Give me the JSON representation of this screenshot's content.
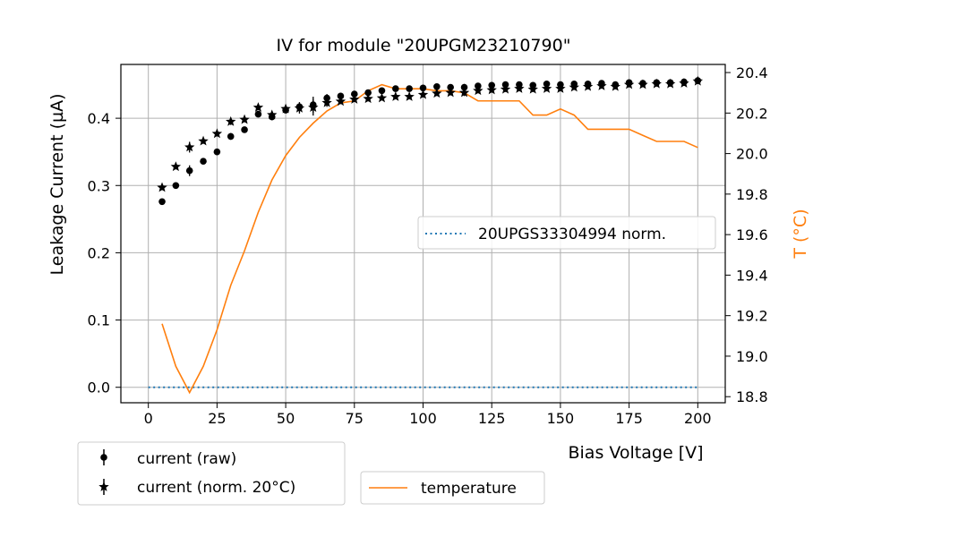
{
  "chart_data": {
    "type": "scatter",
    "title": "IV for module \"20UPGM23210790\"",
    "xlabel": "Bias Voltage [V]",
    "ylabel": "Leakage Current (µA)",
    "y2label": "T (°C)",
    "xlim": [
      -10,
      210
    ],
    "ylim": [
      -0.023,
      0.48
    ],
    "y2lim": [
      18.77,
      20.44
    ],
    "xticks": [
      0,
      25,
      50,
      75,
      100,
      125,
      150,
      175,
      200
    ],
    "yticks": [
      0.0,
      0.1,
      0.2,
      0.3,
      0.4
    ],
    "ytick_labels": [
      "0.0",
      "0.1",
      "0.2",
      "0.3",
      "0.4"
    ],
    "y2ticks": [
      18.8,
      19.0,
      19.2,
      19.4,
      19.6,
      19.8,
      20.0,
      20.2,
      20.4
    ],
    "y2tick_labels": [
      "18.8",
      "19.0",
      "19.2",
      "19.4",
      "19.6",
      "19.8",
      "20.0",
      "20.2",
      "20.4"
    ],
    "grid": true,
    "colors": {
      "current": "#000000",
      "reference": "#1f77b4",
      "temperature": "#ff7f0e",
      "grid": "#b0b0b0"
    },
    "legends": {
      "current_raw": "current (raw)",
      "current_norm": "current (norm. 20°C)",
      "temperature": "temperature",
      "reference": "20UPGS33304994 norm."
    },
    "legend_placement": {
      "current": "below-left",
      "temperature": "below-center",
      "reference": "center-right"
    },
    "series": [
      {
        "name": "current (raw)",
        "marker": "circle",
        "axis": "left",
        "x": [
          5,
          10,
          15,
          20,
          25,
          30,
          35,
          40,
          45,
          50,
          55,
          60,
          65,
          70,
          75,
          80,
          85,
          90,
          95,
          100,
          105,
          110,
          115,
          120,
          125,
          130,
          135,
          140,
          145,
          150,
          155,
          160,
          165,
          170,
          175,
          180,
          185,
          190,
          195,
          200
        ],
        "values": [
          0.276,
          0.3,
          0.322,
          0.336,
          0.35,
          0.373,
          0.383,
          0.406,
          0.402,
          0.412,
          0.417,
          0.42,
          0.43,
          0.433,
          0.436,
          0.438,
          0.441,
          0.444,
          0.444,
          0.445,
          0.447,
          0.446,
          0.446,
          0.448,
          0.449,
          0.45,
          0.45,
          0.449,
          0.451,
          0.45,
          0.451,
          0.451,
          0.452,
          0.45,
          0.453,
          0.452,
          0.453,
          0.453,
          0.454,
          0.456
        ],
        "errors": [
          0.004,
          0.004,
          0.008,
          0.004,
          0.004,
          0.005,
          0.004,
          0.004,
          0.005,
          0.004,
          0.007,
          0.012,
          0.006,
          0.004,
          0.004,
          0.004,
          0.003,
          0.004,
          0.004,
          0.004,
          0.004,
          0.004,
          0.005,
          0.004,
          0.004,
          0.004,
          0.004,
          0.004,
          0.004,
          0.004,
          0.004,
          0.004,
          0.004,
          0.004,
          0.004,
          0.004,
          0.004,
          0.004,
          0.004,
          0.004
        ]
      },
      {
        "name": "current (norm. 20°C)",
        "marker": "star",
        "axis": "left",
        "x": [
          5,
          10,
          15,
          20,
          25,
          30,
          35,
          40,
          45,
          50,
          55,
          60,
          65,
          70,
          75,
          80,
          85,
          90,
          95,
          100,
          105,
          110,
          115,
          120,
          125,
          130,
          135,
          140,
          145,
          150,
          155,
          160,
          165,
          170,
          175,
          180,
          185,
          190,
          195,
          200
        ],
        "values": [
          0.297,
          0.328,
          0.357,
          0.366,
          0.377,
          0.395,
          0.398,
          0.416,
          0.405,
          0.414,
          0.415,
          0.416,
          0.423,
          0.425,
          0.428,
          0.429,
          0.43,
          0.432,
          0.432,
          0.435,
          0.437,
          0.438,
          0.438,
          0.441,
          0.442,
          0.443,
          0.444,
          0.443,
          0.444,
          0.444,
          0.446,
          0.447,
          0.448,
          0.447,
          0.45,
          0.45,
          0.451,
          0.451,
          0.452,
          0.455
        ],
        "errors": [
          0.004,
          0.004,
          0.008,
          0.004,
          0.004,
          0.005,
          0.004,
          0.004,
          0.005,
          0.004,
          0.008,
          0.012,
          0.006,
          0.004,
          0.004,
          0.004,
          0.003,
          0.004,
          0.004,
          0.004,
          0.004,
          0.004,
          0.005,
          0.004,
          0.004,
          0.004,
          0.004,
          0.004,
          0.004,
          0.004,
          0.004,
          0.004,
          0.004,
          0.004,
          0.004,
          0.004,
          0.004,
          0.004,
          0.004,
          0.004
        ]
      },
      {
        "name": "temperature",
        "type": "line",
        "axis": "right",
        "x": [
          5,
          10,
          15,
          20,
          25,
          30,
          35,
          40,
          45,
          50,
          55,
          60,
          65,
          70,
          75,
          80,
          85,
          90,
          95,
          100,
          105,
          110,
          115,
          120,
          125,
          130,
          135,
          140,
          145,
          150,
          155,
          160,
          165,
          170,
          175,
          180,
          185,
          190,
          195,
          200
        ],
        "values": [
          19.16,
          18.95,
          18.82,
          18.95,
          19.13,
          19.35,
          19.52,
          19.71,
          19.87,
          19.99,
          20.08,
          20.15,
          20.21,
          20.25,
          20.26,
          20.31,
          20.34,
          20.32,
          20.32,
          20.32,
          20.31,
          20.31,
          20.3,
          20.26,
          20.26,
          20.26,
          20.26,
          20.19,
          20.19,
          20.22,
          20.19,
          20.12,
          20.12,
          20.12,
          20.12,
          20.09,
          20.06,
          20.06,
          20.06,
          20.03
        ]
      },
      {
        "name": "20UPGS33304994 norm.",
        "type": "line",
        "style": "dotted",
        "axis": "left",
        "x": [
          0,
          200
        ],
        "values": [
          0.0,
          0.0
        ]
      }
    ]
  }
}
